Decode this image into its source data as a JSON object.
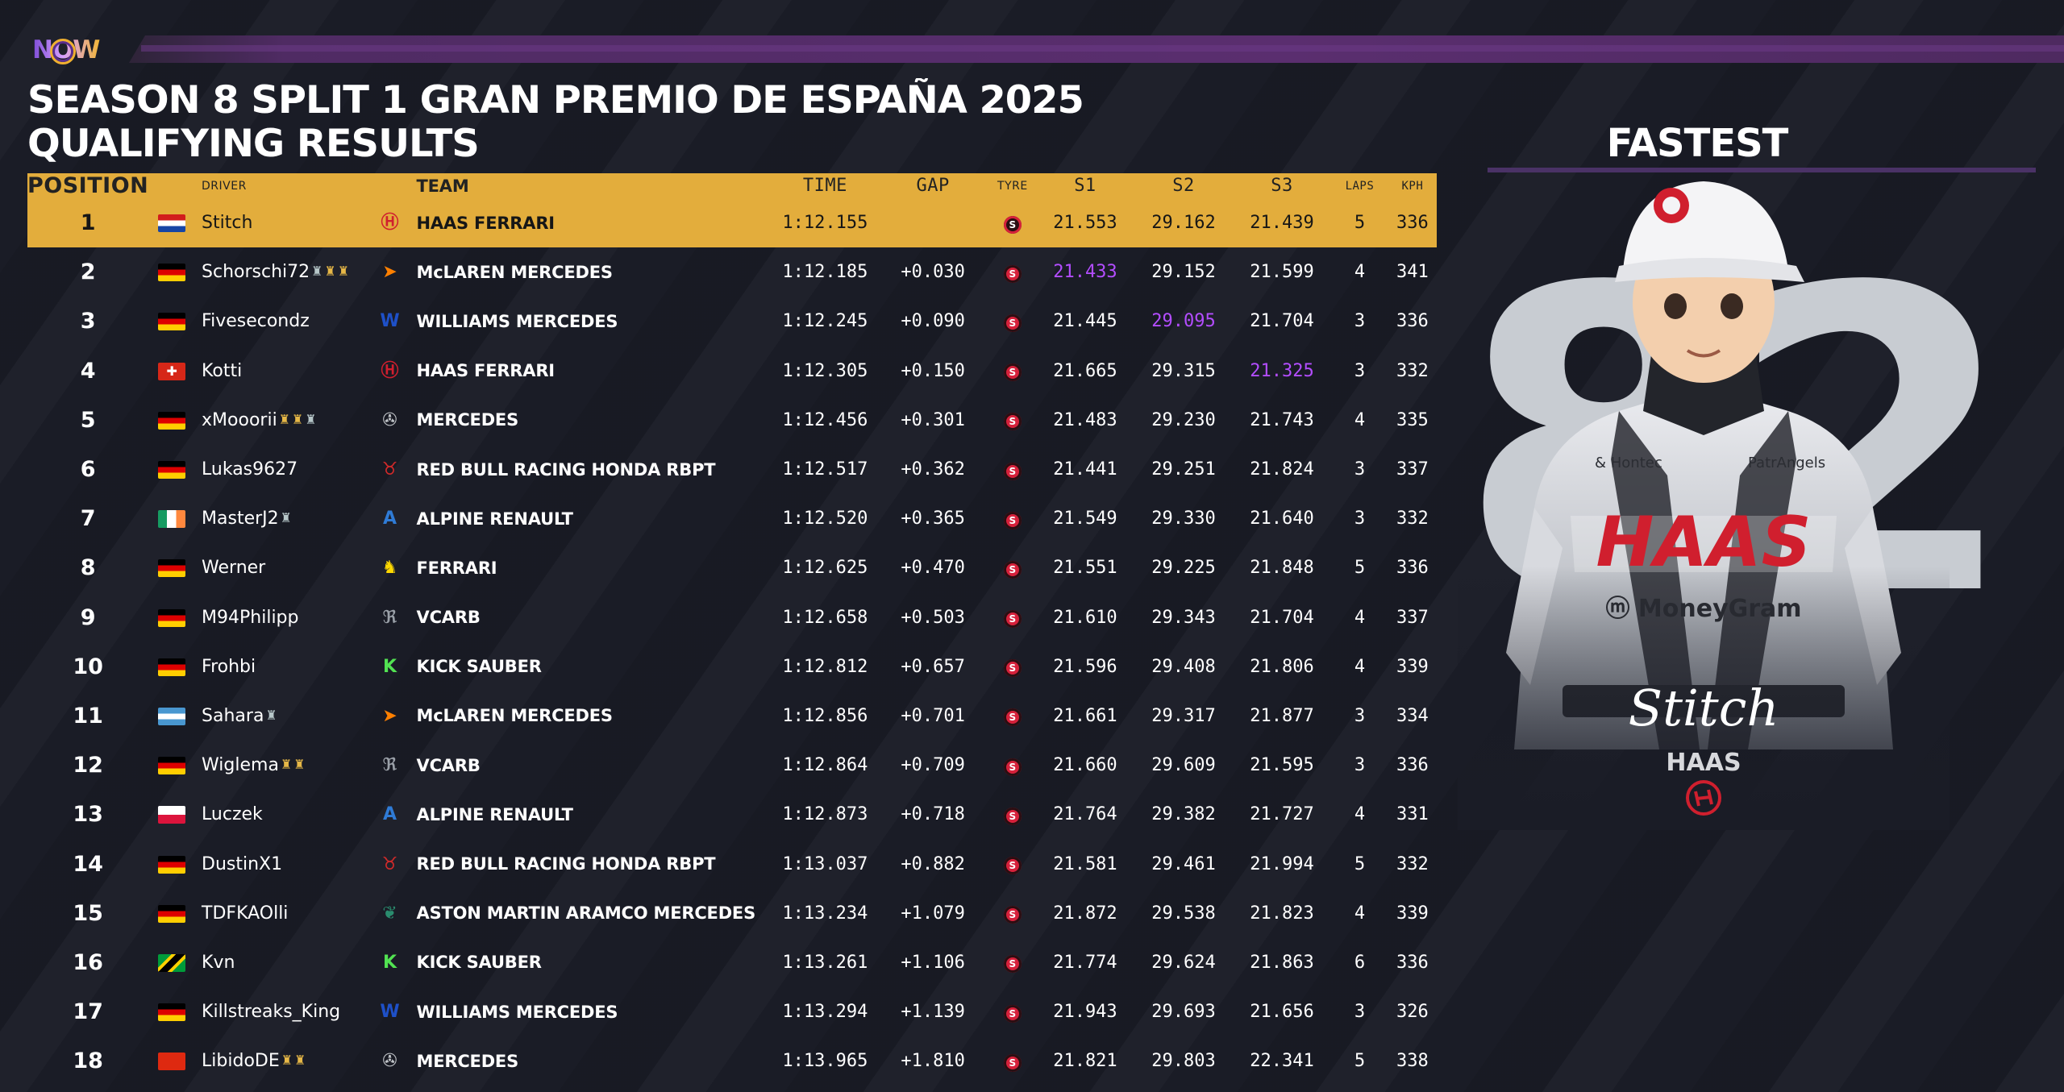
{
  "brand": {
    "logo_text": "NOW"
  },
  "title": {
    "line1": "SEASON 8 SPLIT 1 GRAN PREMIO DE ESPAÑA 2025",
    "line2": "QUALIFYING RESULTS"
  },
  "fastest": {
    "heading": "FASTEST",
    "car_number": "82",
    "signature": "Stitch",
    "team": "HAAS"
  },
  "columns": {
    "position": "POSITION",
    "driver": "DRIVER",
    "team": "TEAM",
    "time": "TIME",
    "gap": "GAP",
    "tyre": "TYRE",
    "s1": "S1",
    "s2": "S2",
    "s3": "S3",
    "laps": "LAPS",
    "kph": "KPH"
  },
  "colors": {
    "accent": "#e3ad3c",
    "fastest_sector": "#b34dff",
    "tyre_soft": "#d6213b",
    "band": "#5a2e6f"
  },
  "rows": [
    {
      "pos": "1",
      "driver": "Stitch",
      "team": "HAAS FERRARI",
      "time": "1:12.155",
      "gap": "",
      "tyre": "S",
      "s1": "21.553",
      "s2": "29.162",
      "s3": "21.439",
      "laps": "5",
      "kph": "336"
    },
    {
      "pos": "2",
      "driver": "Schorschi72",
      "team": "McLAREN MERCEDES",
      "time": "1:12.185",
      "gap": "+0.030",
      "tyre": "S",
      "s1": "21.433",
      "s2": "29.152",
      "s3": "21.599",
      "laps": "4",
      "kph": "341"
    },
    {
      "pos": "3",
      "driver": "Fivesecondz",
      "team": "WILLIAMS MERCEDES",
      "time": "1:12.245",
      "gap": "+0.090",
      "tyre": "S",
      "s1": "21.445",
      "s2": "29.095",
      "s3": "21.704",
      "laps": "3",
      "kph": "336"
    },
    {
      "pos": "4",
      "driver": "Kotti",
      "team": "HAAS FERRARI",
      "time": "1:12.305",
      "gap": "+0.150",
      "tyre": "S",
      "s1": "21.665",
      "s2": "29.315",
      "s3": "21.325",
      "laps": "3",
      "kph": "332"
    },
    {
      "pos": "5",
      "driver": "xMooorii",
      "team": "MERCEDES",
      "time": "1:12.456",
      "gap": "+0.301",
      "tyre": "S",
      "s1": "21.483",
      "s2": "29.230",
      "s3": "21.743",
      "laps": "4",
      "kph": "335"
    },
    {
      "pos": "6",
      "driver": "Lukas9627",
      "team": "RED BULL RACING HONDA RBPT",
      "time": "1:12.517",
      "gap": "+0.362",
      "tyre": "S",
      "s1": "21.441",
      "s2": "29.251",
      "s3": "21.824",
      "laps": "3",
      "kph": "337"
    },
    {
      "pos": "7",
      "driver": "MasterJ2",
      "team": "ALPINE RENAULT",
      "time": "1:12.520",
      "gap": "+0.365",
      "tyre": "S",
      "s1": "21.549",
      "s2": "29.330",
      "s3": "21.640",
      "laps": "3",
      "kph": "332"
    },
    {
      "pos": "8",
      "driver": "Werner",
      "team": "FERRARI",
      "time": "1:12.625",
      "gap": "+0.470",
      "tyre": "S",
      "s1": "21.551",
      "s2": "29.225",
      "s3": "21.848",
      "laps": "5",
      "kph": "336"
    },
    {
      "pos": "9",
      "driver": "M94Philipp",
      "team": "VCARB",
      "time": "1:12.658",
      "gap": "+0.503",
      "tyre": "S",
      "s1": "21.610",
      "s2": "29.343",
      "s3": "21.704",
      "laps": "4",
      "kph": "337"
    },
    {
      "pos": "10",
      "driver": "Frohbi",
      "team": "KICK SAUBER",
      "time": "1:12.812",
      "gap": "+0.657",
      "tyre": "S",
      "s1": "21.596",
      "s2": "29.408",
      "s3": "21.806",
      "laps": "4",
      "kph": "339"
    },
    {
      "pos": "11",
      "driver": "Sahara",
      "team": "McLAREN MERCEDES",
      "time": "1:12.856",
      "gap": "+0.701",
      "tyre": "S",
      "s1": "21.661",
      "s2": "29.317",
      "s3": "21.877",
      "laps": "3",
      "kph": "334"
    },
    {
      "pos": "12",
      "driver": "Wiglema",
      "team": "VCARB",
      "time": "1:12.864",
      "gap": "+0.709",
      "tyre": "S",
      "s1": "21.660",
      "s2": "29.609",
      "s3": "21.595",
      "laps": "3",
      "kph": "336"
    },
    {
      "pos": "13",
      "driver": "Luczek",
      "team": "ALPINE RENAULT",
      "time": "1:12.873",
      "gap": "+0.718",
      "tyre": "S",
      "s1": "21.764",
      "s2": "29.382",
      "s3": "21.727",
      "laps": "4",
      "kph": "331"
    },
    {
      "pos": "14",
      "driver": "DustinX1",
      "team": "RED BULL RACING HONDA RBPT",
      "time": "1:13.037",
      "gap": "+0.882",
      "tyre": "S",
      "s1": "21.581",
      "s2": "29.461",
      "s3": "21.994",
      "laps": "5",
      "kph": "332"
    },
    {
      "pos": "15",
      "driver": "TDFKAOlli",
      "team": "ASTON MARTIN ARAMCO MERCEDES",
      "time": "1:13.234",
      "gap": "+1.079",
      "tyre": "S",
      "s1": "21.872",
      "s2": "29.538",
      "s3": "21.823",
      "laps": "4",
      "kph": "339"
    },
    {
      "pos": "16",
      "driver": "Kvn",
      "team": "KICK SAUBER",
      "time": "1:13.261",
      "gap": "+1.106",
      "tyre": "S",
      "s1": "21.774",
      "s2": "29.624",
      "s3": "21.863",
      "laps": "6",
      "kph": "336"
    },
    {
      "pos": "17",
      "driver": "Killstreaks_King",
      "team": "WILLIAMS MERCEDES",
      "time": "1:13.294",
      "gap": "+1.139",
      "tyre": "S",
      "s1": "21.943",
      "s2": "29.693",
      "s3": "21.656",
      "laps": "3",
      "kph": "326"
    },
    {
      "pos": "18",
      "driver": "LibidoDE",
      "team": "MERCEDES",
      "time": "1:13.965",
      "gap": "+1.810",
      "tyre": "S",
      "s1": "21.821",
      "s2": "29.803",
      "s3": "22.341",
      "laps": "5",
      "kph": "338"
    }
  ]
}
